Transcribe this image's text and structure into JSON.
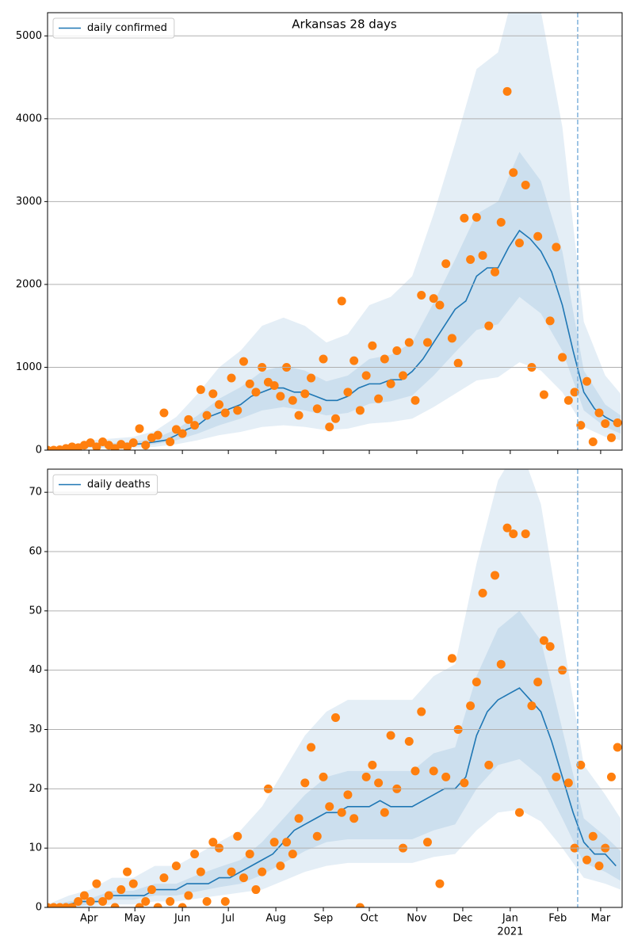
{
  "chart_data": [
    {
      "type": "line",
      "title": "Arkansas 28 days",
      "x": [
        0,
        7,
        14,
        21,
        28,
        35,
        42,
        49,
        56,
        63,
        70,
        77,
        84,
        91,
        98,
        105,
        112,
        119,
        126,
        133,
        140,
        147,
        154,
        161,
        168,
        175,
        182,
        189,
        196,
        203,
        210,
        217,
        224,
        231,
        238,
        245,
        252,
        259,
        266,
        273,
        280,
        287,
        294,
        301,
        308,
        315,
        322,
        329,
        336,
        343,
        350,
        357,
        364,
        371
      ],
      "series": [
        {
          "name": "daily confirmed",
          "color": "#1f77b4",
          "values": [
            0,
            5,
            20,
            40,
            50,
            60,
            60,
            60,
            70,
            80,
            100,
            120,
            180,
            250,
            300,
            400,
            450,
            500,
            550,
            650,
            700,
            750,
            750,
            700,
            700,
            650,
            600,
            600,
            650,
            750,
            800,
            800,
            850,
            850,
            950,
            1100,
            1300,
            1500,
            1700,
            1800,
            2100,
            2200,
            2200,
            2450,
            2650,
            2550,
            2400,
            2150,
            1750,
            1200,
            700,
            500,
            400,
            330
          ]
        }
      ],
      "points": {
        "color": "#ff7f0e",
        "x": [
          0,
          4,
          8,
          12,
          16,
          20,
          24,
          28,
          32,
          36,
          40,
          44,
          48,
          52,
          56,
          60,
          64,
          68,
          72,
          76,
          80,
          84,
          88,
          92,
          96,
          100,
          104,
          108,
          112,
          116,
          120,
          124,
          128,
          132,
          136,
          140,
          144,
          148,
          152,
          156,
          160,
          164,
          168,
          172,
          176,
          180,
          184,
          188,
          192,
          196,
          200,
          204,
          208,
          212,
          216,
          220,
          224,
          228,
          232,
          236,
          240,
          244,
          248,
          252,
          256,
          260,
          264,
          268,
          272,
          276,
          280,
          284,
          288,
          292,
          296,
          300,
          304,
          308,
          312,
          316,
          320,
          324,
          328,
          332,
          336,
          340,
          344,
          348,
          352,
          356,
          360,
          364,
          368,
          372
        ],
        "values": [
          0,
          0,
          5,
          20,
          40,
          30,
          60,
          90,
          40,
          100,
          60,
          20,
          70,
          40,
          90,
          260,
          60,
          150,
          180,
          450,
          100,
          250,
          200,
          370,
          300,
          730,
          420,
          680,
          550,
          450,
          870,
          480,
          1070,
          800,
          700,
          1000,
          820,
          780,
          650,
          1000,
          600,
          420,
          680,
          870,
          500,
          1100,
          280,
          380,
          1800,
          700,
          1080,
          480,
          900,
          1260,
          620,
          1100,
          800,
          1200,
          900,
          1300,
          600,
          1870,
          1300,
          1830,
          1750,
          2250,
          1350,
          1050,
          2800,
          2300,
          2810,
          2350,
          1500,
          2150,
          2750,
          4330,
          3350,
          2500,
          3200,
          1000,
          2580,
          670,
          1560,
          2450,
          1120,
          600,
          700,
          300,
          830,
          100,
          450,
          320,
          150,
          330
        ]
      },
      "band_x": [
        0,
        14,
        28,
        42,
        56,
        70,
        84,
        98,
        112,
        126,
        140,
        154,
        168,
        182,
        196,
        210,
        224,
        238,
        252,
        266,
        280,
        294,
        308,
        322,
        336,
        350,
        364,
        374
      ],
      "band_color": "#1f77b4",
      "bands": [
        {
          "lower": [
            0,
            5,
            20,
            25,
            30,
            40,
            70,
            120,
            180,
            220,
            280,
            300,
            280,
            240,
            260,
            320,
            340,
            380,
            520,
            680,
            840,
            880,
            1060,
            960,
            700,
            280,
            160,
            120
          ],
          "upper": [
            0,
            50,
            120,
            140,
            160,
            230,
            400,
            680,
            1000,
            1200,
            1500,
            1600,
            1500,
            1300,
            1400,
            1750,
            1850,
            2100,
            2850,
            3700,
            4600,
            4800,
            5800,
            5300,
            3900,
            1550,
            900,
            680
          ]
        },
        {
          "lower": [
            0,
            10,
            35,
            40,
            50,
            70,
            120,
            200,
            300,
            380,
            480,
            520,
            480,
            420,
            450,
            560,
            590,
            660,
            900,
            1180,
            1450,
            1520,
            1850,
            1650,
            1200,
            480,
            280,
            200
          ],
          "upper": [
            0,
            30,
            70,
            85,
            100,
            140,
            250,
            420,
            620,
            760,
            950,
            1020,
            960,
            830,
            900,
            1100,
            1150,
            1300,
            1780,
            2300,
            2850,
            3000,
            3600,
            3250,
            2400,
            960,
            550,
            420
          ]
        }
      ],
      "ylim": [
        0,
        5280
      ],
      "yticks": [
        0,
        1000,
        2000,
        3000,
        4000,
        5000
      ],
      "grid": true,
      "legend": "upper left",
      "vline": 346,
      "vline_color": "#7fb2dc"
    },
    {
      "type": "line",
      "x": [
        0,
        7,
        14,
        21,
        28,
        35,
        42,
        49,
        56,
        63,
        70,
        77,
        84,
        91,
        98,
        105,
        112,
        119,
        126,
        133,
        140,
        147,
        154,
        161,
        168,
        175,
        182,
        189,
        196,
        203,
        210,
        217,
        224,
        231,
        238,
        245,
        252,
        259,
        266,
        273,
        280,
        287,
        294,
        301,
        308,
        315,
        322,
        329,
        336,
        343,
        350,
        357,
        364,
        371
      ],
      "series": [
        {
          "name": "daily deaths",
          "color": "#1f77b4",
          "values": [
            0,
            0,
            0.5,
            1,
            1,
            1,
            2,
            2,
            2,
            2,
            3,
            3,
            3,
            4,
            4,
            4,
            5,
            5,
            6,
            7,
            8,
            9,
            11,
            13,
            14,
            15,
            16,
            16,
            17,
            17,
            17,
            18,
            17,
            17,
            17,
            18,
            19,
            20,
            20,
            22,
            29,
            33,
            35,
            36,
            37,
            35,
            33,
            28,
            22,
            16,
            11,
            9,
            9,
            7
          ]
        }
      ],
      "points": {
        "color": "#ff7f0e",
        "x": [
          0,
          4,
          8,
          12,
          16,
          20,
          24,
          28,
          32,
          36,
          40,
          44,
          48,
          52,
          56,
          60,
          64,
          68,
          72,
          76,
          80,
          84,
          88,
          92,
          96,
          100,
          104,
          108,
          112,
          116,
          120,
          124,
          128,
          132,
          136,
          140,
          144,
          148,
          152,
          156,
          160,
          164,
          168,
          172,
          176,
          180,
          184,
          188,
          192,
          196,
          200,
          204,
          208,
          212,
          216,
          220,
          224,
          228,
          232,
          236,
          240,
          244,
          248,
          252,
          256,
          260,
          264,
          268,
          272,
          276,
          280,
          284,
          288,
          292,
          296,
          300,
          304,
          308,
          312,
          316,
          320,
          324,
          328,
          332,
          336,
          340,
          344,
          348,
          352,
          356,
          360,
          364,
          368,
          372
        ],
        "values": [
          0,
          0,
          0,
          0,
          0,
          1,
          2,
          1,
          4,
          1,
          2,
          0,
          3,
          6,
          4,
          0,
          1,
          3,
          0,
          5,
          1,
          7,
          0,
          2,
          9,
          6,
          1,
          11,
          10,
          1,
          6,
          12,
          5,
          9,
          3,
          6,
          20,
          11,
          7,
          11,
          9,
          15,
          21,
          27,
          12,
          22,
          17,
          32,
          16,
          19,
          15,
          0,
          22,
          24,
          21,
          16,
          29,
          20,
          10,
          28,
          23,
          33,
          11,
          23,
          4,
          22,
          42,
          30,
          21,
          34,
          38,
          53,
          24,
          56,
          41,
          64,
          63,
          16,
          63,
          34,
          38,
          45,
          44,
          22,
          40,
          21,
          10,
          24,
          8,
          12,
          7,
          10,
          22,
          27
        ]
      },
      "band_x": [
        0,
        14,
        28,
        42,
        56,
        70,
        84,
        98,
        112,
        126,
        140,
        154,
        168,
        182,
        196,
        210,
        224,
        238,
        252,
        266,
        280,
        294,
        308,
        322,
        336,
        350,
        364,
        374
      ],
      "band_color": "#1f77b4",
      "bands": [
        {
          "lower": [
            0,
            0,
            0,
            0.5,
            0.5,
            1,
            1,
            1.5,
            2,
            2.5,
            3,
            4.5,
            6,
            7,
            7.5,
            7.5,
            7.5,
            7.5,
            8.5,
            9,
            13,
            16,
            16.5,
            14.5,
            10,
            5,
            4,
            3
          ],
          "upper": [
            0.5,
            2,
            3,
            5,
            5,
            7,
            7,
            9,
            11,
            13,
            17,
            23,
            29,
            33,
            35,
            35,
            35,
            35,
            39,
            41,
            58,
            72,
            78,
            68,
            46,
            24,
            19,
            15
          ]
        },
        {
          "lower": [
            0,
            0,
            0.5,
            1.3,
            1.3,
            2,
            2,
            2.7,
            3.4,
            4,
            5.5,
            7.5,
            9.5,
            11,
            11.5,
            11.5,
            11.5,
            11.5,
            13,
            14,
            20,
            24,
            25,
            22,
            15,
            7.5,
            6,
            4.5
          ],
          "upper": [
            0.3,
            1,
            1.5,
            2.8,
            2.8,
            4,
            4,
            5.5,
            6.8,
            8,
            11,
            15,
            19,
            22,
            23,
            23,
            23,
            23,
            26,
            27,
            39,
            47,
            50,
            45,
            30,
            15,
            12,
            9.5
          ]
        }
      ],
      "ylim": [
        0,
        73.9
      ],
      "yticks": [
        0,
        10,
        20,
        30,
        40,
        50,
        60,
        70
      ],
      "grid": true,
      "legend": "upper left",
      "vline": 346,
      "vline_color": "#7fb2dc",
      "xlim": [
        0,
        375
      ],
      "xticks": [
        {
          "value": 27,
          "label": "Apr"
        },
        {
          "value": 57,
          "label": "May"
        },
        {
          "value": 88,
          "label": "Jun"
        },
        {
          "value": 118,
          "label": "Jul"
        },
        {
          "value": 149,
          "label": "Aug"
        },
        {
          "value": 180,
          "label": "Sep"
        },
        {
          "value": 210,
          "label": "Oct"
        },
        {
          "value": 241,
          "label": "Nov"
        },
        {
          "value": 271,
          "label": "Dec"
        },
        {
          "value": 302,
          "label": "Jan"
        },
        {
          "value": 333,
          "label": "Feb"
        },
        {
          "value": 361,
          "label": "Mar"
        }
      ],
      "xticks_secondary": [
        {
          "value": 302,
          "label": "2021"
        }
      ]
    }
  ]
}
